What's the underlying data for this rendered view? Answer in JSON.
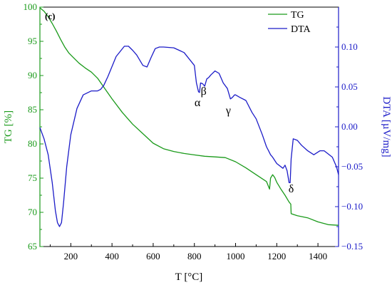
{
  "chart_data": {
    "type": "line",
    "panel_label": "(c)",
    "xlabel": "T [°C]",
    "ylabel_left": "TG [%]",
    "ylabel_right": "DTA [µV/mg]",
    "xlim": [
      50,
      1500
    ],
    "ylim_left": [
      65,
      100
    ],
    "ylim_right": [
      -0.15,
      0.15
    ],
    "x_ticks": [
      200,
      400,
      600,
      800,
      1000,
      1200,
      1400
    ],
    "x_tick_labels": [
      "200",
      "400",
      "600",
      "800",
      "1000",
      "1200",
      "1400"
    ],
    "left_ticks": [
      65,
      70,
      75,
      80,
      85,
      90,
      95,
      100
    ],
    "left_tick_labels": [
      "65",
      "70",
      "75",
      "80",
      "85",
      "90",
      "95",
      "100"
    ],
    "right_ticks": [
      -0.15,
      -0.1,
      -0.05,
      0.0,
      0.05,
      0.1
    ],
    "right_tick_labels": [
      "−0.15",
      "−0.10",
      "−0.05",
      "0.00",
      "0.05",
      "0.10"
    ],
    "colors": {
      "tg": "#1a9a1a",
      "dta": "#1c1cc8",
      "axis": "#000000"
    },
    "legend_position": "top-right",
    "series": [
      {
        "name": "TG",
        "axis": "left",
        "color": "#1a9a1a",
        "x": [
          50,
          70,
          90,
          110,
          130,
          150,
          170,
          190,
          210,
          240,
          270,
          300,
          330,
          360,
          400,
          450,
          500,
          550,
          600,
          650,
          700,
          750,
          800,
          850,
          900,
          950,
          1000,
          1050,
          1100,
          1150,
          1165,
          1170,
          1180,
          1190,
          1200,
          1210,
          1220,
          1240,
          1260,
          1268,
          1270,
          1280,
          1300,
          1350,
          1400,
          1450,
          1500
        ],
        "y": [
          99.9,
          99.4,
          98.6,
          97.6,
          96.5,
          95.3,
          94.2,
          93.3,
          92.7,
          91.8,
          91.1,
          90.5,
          89.6,
          88.3,
          86.6,
          84.6,
          82.9,
          81.5,
          80.1,
          79.3,
          78.9,
          78.6,
          78.4,
          78.2,
          78.1,
          78.0,
          77.4,
          76.5,
          75.5,
          74.5,
          73.4,
          75.0,
          75.5,
          75.1,
          74.4,
          73.9,
          73.4,
          72.5,
          71.5,
          71.2,
          69.8,
          69.7,
          69.5,
          69.2,
          68.6,
          68.2,
          68.1
        ]
      },
      {
        "name": "DTA",
        "axis": "right",
        "color": "#1c1cc8",
        "x": [
          50,
          70,
          90,
          110,
          125,
          135,
          145,
          155,
          165,
          180,
          200,
          230,
          260,
          300,
          330,
          345,
          360,
          380,
          420,
          460,
          480,
          500,
          520,
          550,
          570,
          590,
          610,
          630,
          650,
          700,
          750,
          800,
          810,
          820,
          825,
          830,
          840,
          850,
          860,
          870,
          880,
          900,
          920,
          940,
          960,
          975,
          985,
          995,
          1000,
          1020,
          1050,
          1080,
          1100,
          1130,
          1150,
          1160,
          1170,
          1180,
          1200,
          1230,
          1240,
          1250,
          1260,
          1265,
          1270,
          1280,
          1290,
          1300,
          1320,
          1350,
          1380,
          1410,
          1430,
          1450,
          1470,
          1490,
          1500
        ],
        "y": [
          -0.001,
          -0.015,
          -0.035,
          -0.07,
          -0.105,
          -0.12,
          -0.125,
          -0.12,
          -0.095,
          -0.05,
          -0.01,
          0.023,
          0.04,
          0.045,
          0.045,
          0.047,
          0.052,
          0.063,
          0.088,
          0.101,
          0.101,
          0.096,
          0.09,
          0.077,
          0.075,
          0.087,
          0.098,
          0.1,
          0.1,
          0.099,
          0.093,
          0.077,
          0.055,
          0.044,
          0.043,
          0.055,
          0.054,
          0.051,
          0.06,
          0.062,
          0.065,
          0.07,
          0.067,
          0.055,
          0.048,
          0.035,
          0.037,
          0.04,
          0.04,
          0.037,
          0.033,
          0.018,
          0.01,
          -0.01,
          -0.025,
          -0.03,
          -0.035,
          -0.038,
          -0.046,
          -0.052,
          -0.048,
          -0.055,
          -0.07,
          -0.07,
          -0.04,
          -0.015,
          -0.016,
          -0.017,
          -0.023,
          -0.03,
          -0.035,
          -0.03,
          -0.03,
          -0.034,
          -0.038,
          -0.05,
          -0.06
        ]
      }
    ],
    "annotations": [
      {
        "text": "α",
        "x": 815,
        "y_right": 0.026
      },
      {
        "text": "β",
        "x": 845,
        "y_right": 0.04
      },
      {
        "text": "γ",
        "x": 965,
        "y_right": 0.016
      },
      {
        "text": "δ",
        "x": 1270,
        "y_right": -0.082
      }
    ]
  }
}
